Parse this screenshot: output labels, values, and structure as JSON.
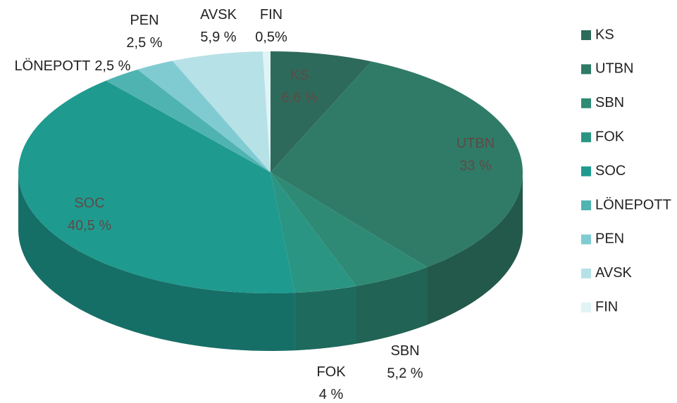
{
  "chart_data": {
    "type": "pie",
    "categories": [
      "KS",
      "UTBN",
      "SBN",
      "FOK",
      "SOC",
      "LÖNEPOTT",
      "PEN",
      "AVSK",
      "FIN"
    ],
    "values": [
      6.6,
      33,
      5.2,
      4,
      40.5,
      2.5,
      2.5,
      5.9,
      0.5
    ],
    "value_labels": [
      "6,6 %",
      "33 %",
      "5,2 %",
      "4 %",
      "40,5 %",
      "2,5 %",
      "2,5 %",
      "5,9 %",
      "0,5%"
    ],
    "colors": [
      "#2e6a5b",
      "#2f7b67",
      "#2e8a74",
      "#2a9582",
      "#1f9a8f",
      "#4fb4b1",
      "#80cbd2",
      "#b6e1e7",
      "#e0f3f5"
    ],
    "legend": "right"
  }
}
